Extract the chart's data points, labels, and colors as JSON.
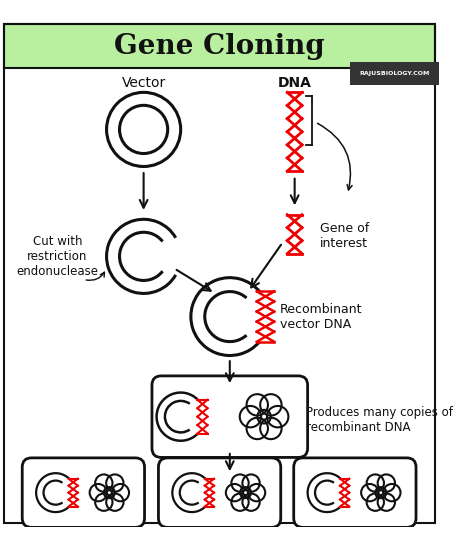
{
  "title": "Gene Cloning",
  "title_bg": "#b8f0a0",
  "bg_color": "#ffffff",
  "label_vector": "Vector",
  "label_dna": "DNA",
  "label_gene": "Gene of\ninterest",
  "label_cut": "Cut with\nrestriction\nendonuclease",
  "label_recombinant": "Recombinant\nvector DNA",
  "label_produces": "Produces many copies of\nrecombinant DNA",
  "watermark": "RAJUSBIOLOGY.COM",
  "black_color": "#111111",
  "dna_red": "#ee0000",
  "title_fontsize": 20,
  "body_fontsize": 9
}
